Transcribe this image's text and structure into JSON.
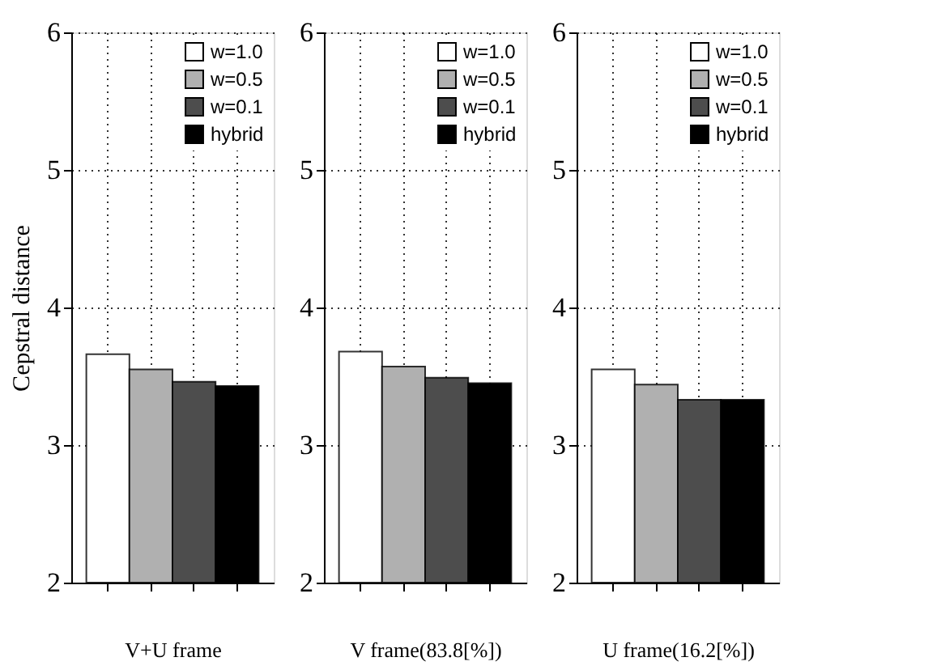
{
  "chart_data": [
    {
      "type": "bar",
      "categories": [
        null,
        null,
        null,
        null
      ],
      "xlabel": "V+U frame",
      "ylabel": "Cepstral distance",
      "ylim": [
        2,
        6
      ],
      "yticks": [
        2,
        3,
        4,
        5,
        6
      ],
      "grid": true,
      "legend": "top right",
      "tick_labels": "y",
      "series": [
        {
          "name": "w=1.0",
          "color": "#ffffff",
          "values": [
            3.66,
            null,
            null,
            null
          ]
        },
        {
          "name": "w=0.5",
          "color": "#b0b0b0",
          "values": [
            null,
            3.55,
            null,
            null
          ]
        },
        {
          "name": "w=0.1",
          "color": "#4d4d4d",
          "values": [
            null,
            null,
            3.46,
            null
          ]
        },
        {
          "name": "hybrid",
          "color": "#000000",
          "values": [
            null,
            null,
            null,
            3.43
          ]
        }
      ]
    },
    {
      "type": "bar",
      "categories": [
        null,
        null,
        null,
        null
      ],
      "xlabel": "V frame(83.8[%])",
      "ylim": [
        2,
        6
      ],
      "yticks": [
        2,
        3,
        4,
        5,
        6
      ],
      "grid": true,
      "legend": "top right",
      "tick_labels": "y",
      "series": [
        {
          "name": "w=1.0",
          "color": "#ffffff",
          "values": [
            3.68,
            null,
            null,
            null
          ]
        },
        {
          "name": "w=0.5",
          "color": "#b0b0b0",
          "values": [
            null,
            3.57,
            null,
            null
          ]
        },
        {
          "name": "w=0.1",
          "color": "#4d4d4d",
          "values": [
            null,
            null,
            3.49,
            null
          ]
        },
        {
          "name": "hybrid",
          "color": "#000000",
          "values": [
            null,
            null,
            null,
            3.45
          ]
        }
      ]
    },
    {
      "type": "bar",
      "categories": [
        null,
        null,
        null,
        null
      ],
      "xlabel": "U frame(16.2[%])",
      "ylim": [
        2,
        6
      ],
      "yticks": [
        2,
        3,
        4,
        5,
        6
      ],
      "grid": true,
      "legend": "top right",
      "tick_labels": "y",
      "series": [
        {
          "name": "w=1.0",
          "color": "#ffffff",
          "values": [
            3.55,
            null,
            null,
            null
          ]
        },
        {
          "name": "w=0.5",
          "color": "#b0b0b0",
          "values": [
            null,
            3.44,
            null,
            null
          ]
        },
        {
          "name": "w=0.1",
          "color": "#4d4d4d",
          "values": [
            null,
            null,
            3.33,
            null
          ]
        },
        {
          "name": "hybrid",
          "color": "#000000",
          "values": [
            null,
            null,
            null,
            3.33
          ]
        }
      ]
    }
  ]
}
